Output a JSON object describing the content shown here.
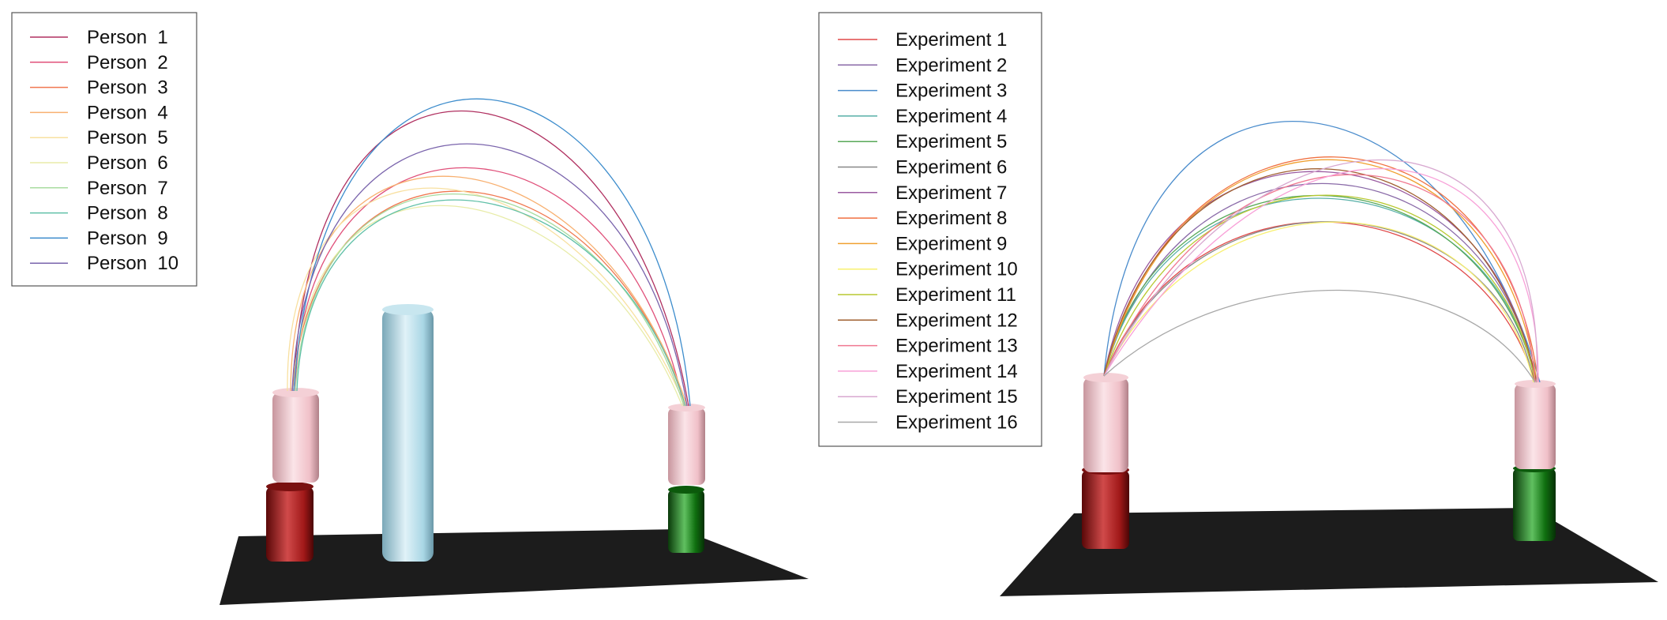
{
  "left_panel": {
    "legend": [
      {
        "label": "Person  1",
        "color": "#b03060"
      },
      {
        "label": "Person  2",
        "color": "#e0507a"
      },
      {
        "label": "Person  3",
        "color": "#f07850"
      },
      {
        "label": "Person  4",
        "color": "#f8b070"
      },
      {
        "label": "Person  5",
        "color": "#f8e0a0"
      },
      {
        "label": "Person  6",
        "color": "#e8eca8"
      },
      {
        "label": "Person  7",
        "color": "#a8dca0"
      },
      {
        "label": "Person  8",
        "color": "#60c0a8"
      },
      {
        "label": "Person  9",
        "color": "#3c8ccc"
      },
      {
        "label": "Person  10",
        "color": "#7a64ac"
      }
    ]
  },
  "right_panel": {
    "legend": [
      {
        "label": "Experiment 1",
        "color": "#e04848"
      },
      {
        "label": "Experiment 2",
        "color": "#8a6aa8"
      },
      {
        "label": "Experiment 3",
        "color": "#4a8ccc"
      },
      {
        "label": "Experiment 4",
        "color": "#58b0a8"
      },
      {
        "label": "Experiment 5",
        "color": "#58a858"
      },
      {
        "label": "Experiment 6",
        "color": "#888888"
      },
      {
        "label": "Experiment 7",
        "color": "#9a5aa0"
      },
      {
        "label": "Experiment 8",
        "color": "#f07040"
      },
      {
        "label": "Experiment 9",
        "color": "#f0a030"
      },
      {
        "label": "Experiment 10",
        "color": "#f8f070"
      },
      {
        "label": "Experiment 11",
        "color": "#b8c830"
      },
      {
        "label": "Experiment 12",
        "color": "#a06030"
      },
      {
        "label": "Experiment 13",
        "color": "#f07890"
      },
      {
        "label": "Experiment 14",
        "color": "#f8a0d8"
      },
      {
        "label": "Experiment 15",
        "color": "#d8a8d0"
      },
      {
        "label": "Experiment 16",
        "color": "#a8a8a8"
      }
    ]
  },
  "colors": {
    "floor": "#1c1c1c",
    "pink_cylinder": "#f2c4cc",
    "red_cylinder": "#a01818",
    "green_cylinder": "#107010",
    "blue_obstacle": "#a9d6e5"
  }
}
